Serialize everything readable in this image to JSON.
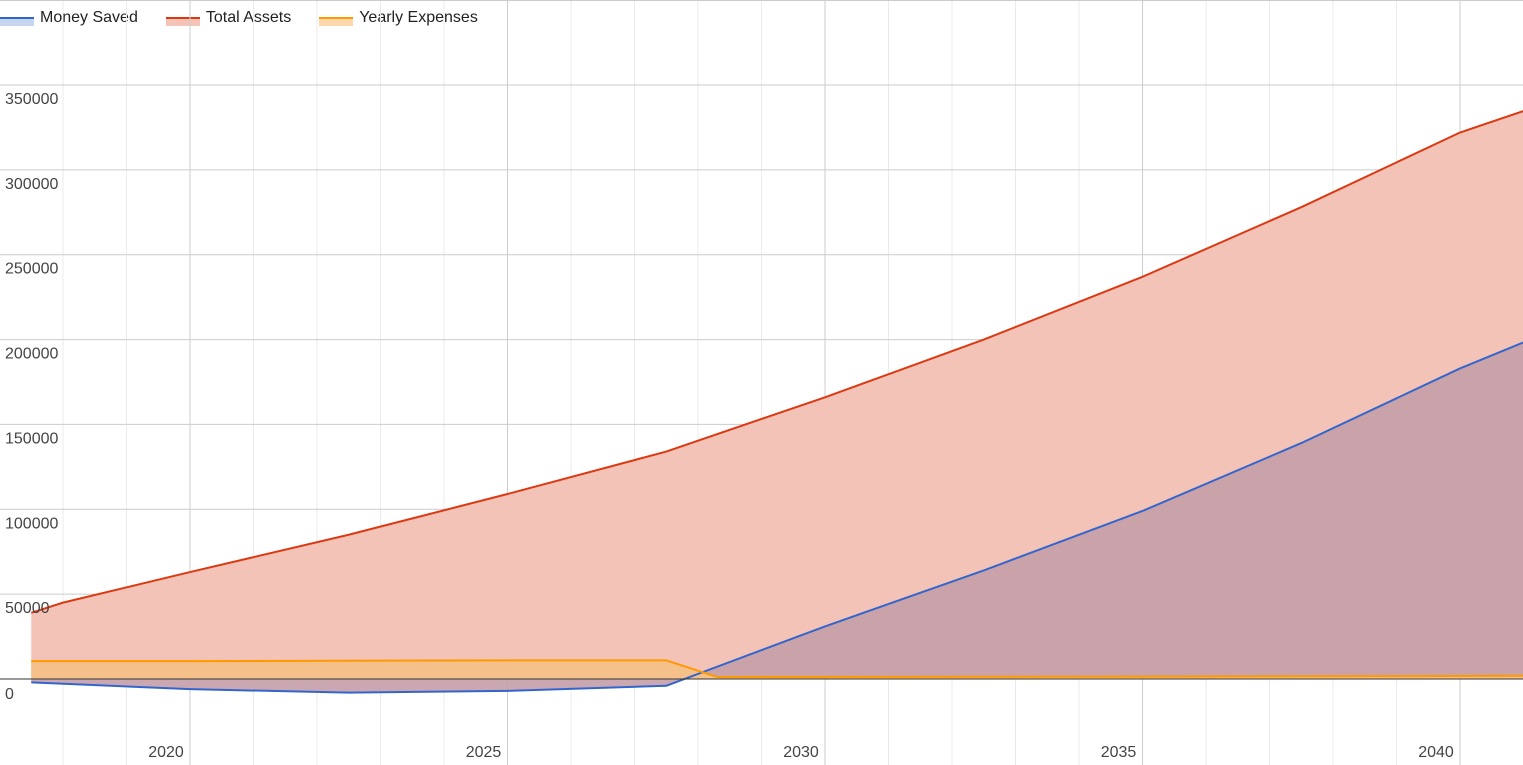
{
  "chart_data": {
    "type": "area",
    "x_unit": "year",
    "xlim": [
      2017.5,
      2041.5
    ],
    "ylim": [
      -20000,
      350000
    ],
    "x_ticks": [
      2020,
      2025,
      2030,
      2035,
      2040
    ],
    "x_tick_labels": [
      "2020",
      "2025",
      "2030",
      "2035",
      "2040"
    ],
    "x_minor_step": 1,
    "y_ticks": [
      0,
      50000,
      100000,
      150000,
      200000,
      250000,
      300000,
      350000
    ],
    "y_tick_labels": [
      "0",
      "50000",
      "100000",
      "150000",
      "200000",
      "250000",
      "300000",
      "350000"
    ],
    "grid": true,
    "legend_position": "top-left",
    "series": [
      {
        "name": "Total Assets",
        "color": "#dc3912",
        "fill": "#f4c3b7",
        "x": [
          2017.5,
          2018,
          2020,
          2022.5,
          2025,
          2027.5,
          2030,
          2032.5,
          2035,
          2037.5,
          2040,
          2041.5
        ],
        "values": [
          39000,
          45000,
          63000,
          85000,
          109000,
          134000,
          166000,
          200000,
          237000,
          278000,
          322000,
          341000
        ]
      },
      {
        "name": "Money Saved",
        "color": "#3366cc",
        "fill": "#c59ea9",
        "x": [
          2017.5,
          2020,
          2022.5,
          2025,
          2027.5,
          2030,
          2032.5,
          2035,
          2037.5,
          2040,
          2041.5
        ],
        "values": [
          -2000,
          -6000,
          -8000,
          -7000,
          -4000,
          31000,
          64000,
          99000,
          139000,
          183000,
          206000
        ]
      },
      {
        "name": "Yearly Expenses",
        "color": "#ff9900",
        "fill": "#f5c089",
        "x": [
          2017.5,
          2020,
          2025,
          2027.5,
          2028.3,
          2030,
          2035,
          2040,
          2041.5
        ],
        "values": [
          10500,
          10500,
          11000,
          11000,
          1200,
          1200,
          1400,
          1800,
          2000
        ]
      }
    ]
  }
}
